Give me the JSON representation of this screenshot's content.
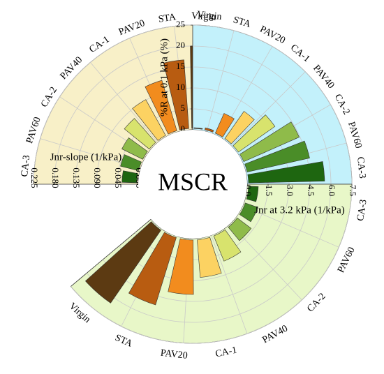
{
  "chart_data": {
    "type": "radial-bar",
    "title": "MSCR",
    "categories": [
      "Virgin",
      "STA",
      "PAV20",
      "CA-1",
      "PAV40",
      "CA-2",
      "PAV60",
      "CA-3"
    ],
    "colors": [
      "#5c3a12",
      "#b85c11",
      "#f28c1e",
      "#fcd262",
      "#d8e36d",
      "#8fbb4a",
      "#4a8d28",
      "#1e6610"
    ],
    "panels": [
      {
        "id": "jnr-slope",
        "axis_label": "Jnr-slope (1/kPa)",
        "ticks": [
          "0.225",
          "0.180",
          "0.135",
          "0.090",
          "0.045",
          "0.000"
        ],
        "ylim": [
          0,
          0.225
        ],
        "background": "#f8f0c8",
        "values": [
          0.18,
          0.151,
          0.116,
          0.091,
          0.072,
          0.053,
          0.043,
          0.035
        ]
      },
      {
        "id": "recovery",
        "axis_label": "%R at 0.1 kPa (%)",
        "ticks": [
          "0",
          "5",
          "10",
          "15",
          "20",
          "25"
        ],
        "ylim": [
          0,
          25
        ],
        "background": "#c3f1fb",
        "values": [
          0.5,
          0.8,
          5.5,
          8.3,
          11.0,
          14.8,
          15.6,
          18.5
        ]
      },
      {
        "id": "jnr32",
        "axis_label": "Jnr at 3.2 kPa (1/kPa)",
        "ticks": [
          "0.0",
          "1.5",
          "3.0",
          "4.5",
          "6.0",
          "7.5"
        ],
        "ylim": [
          0,
          7.5
        ],
        "background": "#e8f7c8",
        "values": [
          6.45,
          5.15,
          4.0,
          2.8,
          2.05,
          1.35,
          1.05,
          0.8
        ]
      }
    ]
  }
}
